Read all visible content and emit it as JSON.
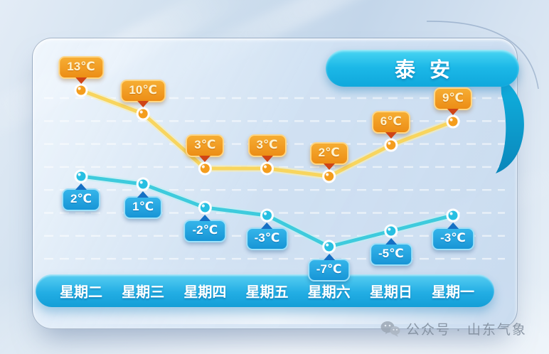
{
  "title": {
    "city": "泰安"
  },
  "watermark": {
    "text": "公众号 · 山东气象",
    "icon": "wechat-icon"
  },
  "banner": {
    "color_top": "#4ad6f3",
    "color_bottom": "#0fa8dc",
    "text_color": "#ffffff"
  },
  "weekday_axis": {
    "bar_top_color": "#58cef2",
    "bar_bottom_color": "#139ed7",
    "text_color": "#ffffff"
  },
  "chart_data": {
    "type": "line",
    "title": "泰安",
    "categories": [
      "星期二",
      "星期三",
      "星期四",
      "星期五",
      "星期六",
      "星期日",
      "星期一"
    ],
    "unit": "℃",
    "series": [
      {
        "name": "high",
        "values": [
          13,
          10,
          3,
          3,
          2,
          6,
          9
        ],
        "label_position": "above",
        "line_color": "#f8d55e",
        "glow_color": "#f9ecb0",
        "point_color": "#f49d1d",
        "bubble_top": "#f6ad33",
        "bubble_bottom": "#ec8d15",
        "bubble_border": "rgba(253,217,140,0.95)",
        "arrow_color": "#cf4416",
        "text_color": "#fdf3cf"
      },
      {
        "name": "low",
        "values": [
          2,
          1,
          -2,
          -3,
          -7,
          -5,
          -3
        ],
        "label_position": "below",
        "line_color": "#3ecbdd",
        "glow_color": "#bdeef3",
        "point_color": "#27bfe2",
        "bubble_top": "#35b5ea",
        "bubble_bottom": "#1795d6",
        "bubble_border": "rgba(171,228,250,0.9)",
        "arrow_color": "#1670c4",
        "text_color": "#ffffff"
      }
    ],
    "grid": "horizontal-dashed",
    "legend": "none",
    "ylim": [
      -9,
      14
    ]
  }
}
